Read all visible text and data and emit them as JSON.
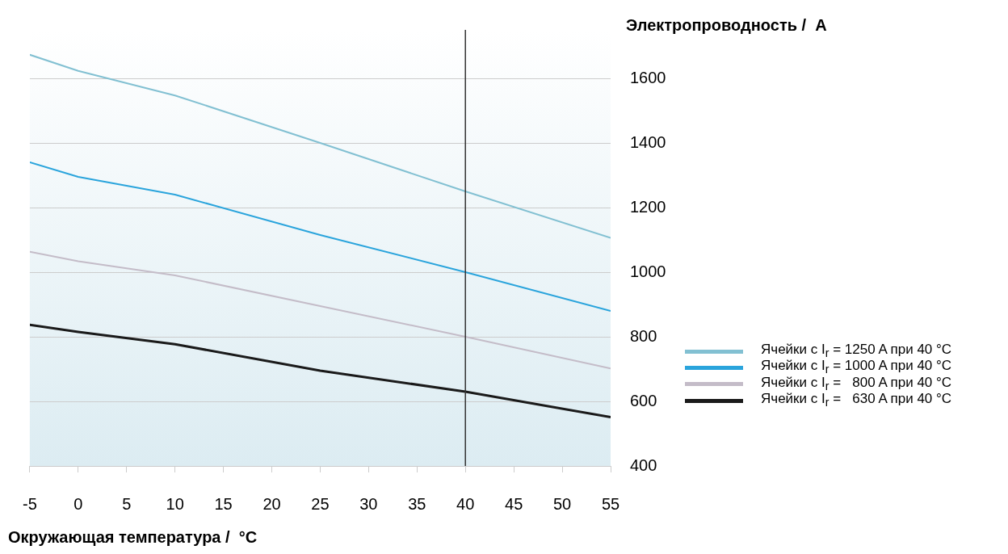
{
  "chart_data": {
    "type": "line",
    "xlabel": "Окружающая температура /  °C",
    "ylabel": "Электропроводность /  A",
    "xlim": [
      -5,
      55
    ],
    "xticks": [
      -5,
      0,
      5,
      10,
      15,
      20,
      25,
      30,
      35,
      40,
      45,
      50,
      55
    ],
    "ylim": [
      400,
      1750
    ],
    "yticks": [
      400,
      600,
      800,
      1000,
      1200,
      1400,
      1600
    ],
    "grid": "y",
    "legend": "right",
    "marker": "none",
    "line_style": "solid",
    "ref_lines": [
      {
        "axis": "x",
        "value": 40,
        "color": "#333333"
      }
    ],
    "series": [
      {
        "name": "Ячейки с I$_{r}$ = 1250 A при 40 °C",
        "color": "#82c0d2",
        "x": [
          -5,
          0,
          10,
          25,
          40,
          55
        ],
        "values": [
          1673,
          1623,
          1547,
          1400,
          1250,
          1106
        ]
      },
      {
        "name": "Ячейки с I$_{r}$ = 1000 A при 40 °C",
        "color": "#2aa4dc",
        "x": [
          -5,
          0,
          10,
          25,
          40,
          55
        ],
        "values": [
          1340,
          1295,
          1240,
          1115,
          1000,
          880
        ]
      },
      {
        "name": "Ячейки с I$_{r}$ =   800 A при 40 °C",
        "color": "#c4bcc8",
        "x": [
          -5,
          0,
          10,
          25,
          40,
          55
        ],
        "values": [
          1063,
          1034,
          990,
          895,
          800,
          702
        ]
      },
      {
        "name": "Ячейки с I$_{r}$ =   630 A при 40 °C",
        "color": "#1a1a1a",
        "x": [
          -5,
          0,
          10,
          25,
          40,
          55
        ],
        "values": [
          837,
          815,
          777,
          695,
          630,
          551
        ]
      }
    ]
  }
}
